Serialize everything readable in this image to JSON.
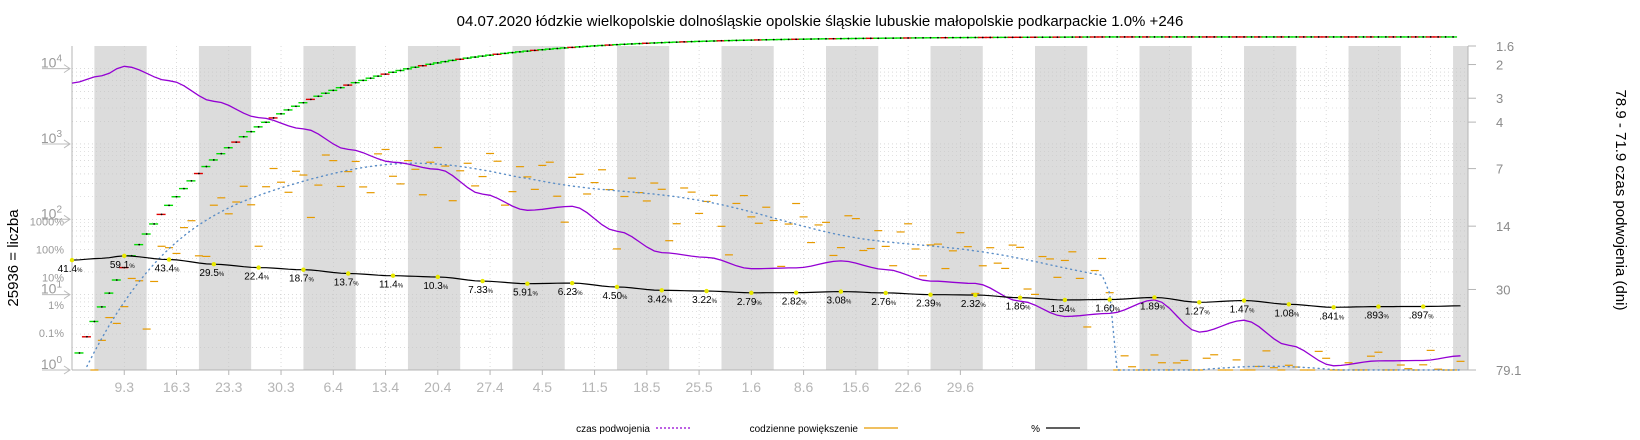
{
  "chart_data": {
    "type": "line",
    "title": "04.07.2020 łódzkie wielkopolskie dolnośląskie opolskie śląskie lubuskie małopolskie podkarpackie 1.0% +246",
    "ylabel_left": "25936 = liczba",
    "ylabel_right": "78.9 - 71.9 czas podwojenia (dni)",
    "x_ticks": [
      "9.3",
      "16.3",
      "23.3",
      "30.3",
      "6.4",
      "13.4",
      "20.4",
      "27.4",
      "4.5",
      "11.5",
      "18.5",
      "25.5",
      "1.6",
      "8.6",
      "15.6",
      "22.6",
      "29.6"
    ],
    "y_left_count_ticks": [
      {
        "base": "10",
        "exp": "0"
      },
      {
        "base": "10",
        "exp": "1"
      },
      {
        "base": "10",
        "exp": "2"
      },
      {
        "base": "10",
        "exp": "3"
      },
      {
        "base": "10",
        "exp": "4"
      }
    ],
    "y_left_pct_ticks": [
      "0.1%",
      "1%",
      "10%",
      "100%",
      "1000%"
    ],
    "y_right_ticks": [
      "1.6",
      "2",
      "3",
      "4",
      "7",
      "14",
      "30",
      "79.1"
    ],
    "legend": {
      "doubling": "czas podwojenia",
      "daily": "codzienne powiększenie",
      "percent": "%"
    },
    "colors": {
      "count_up": "#00dd00",
      "count_down": "#dd0000",
      "doubling": "#9400d3",
      "daily": "#e69a00",
      "percent": "#000000",
      "percent_marker": "#e8e800",
      "weekend_band": "#dcdcdc"
    },
    "pct_labels": [
      {
        "day": 0,
        "text": "41.4"
      },
      {
        "day": 7,
        "text": "59.1"
      },
      {
        "day": 13,
        "text": "43.4"
      },
      {
        "day": 19,
        "text": "29.5"
      },
      {
        "day": 25,
        "text": "22.4"
      },
      {
        "day": 31,
        "text": "18.7"
      },
      {
        "day": 37,
        "text": "13.7"
      },
      {
        "day": 43,
        "text": "11.4"
      },
      {
        "day": 49,
        "text": "10.3"
      },
      {
        "day": 55,
        "text": "7.33"
      },
      {
        "day": 61,
        "text": "5.91"
      },
      {
        "day": 67,
        "text": "6.23"
      },
      {
        "day": 73,
        "text": "4.50"
      },
      {
        "day": 79,
        "text": "3.42"
      },
      {
        "day": 85,
        "text": "3.22"
      },
      {
        "day": 91,
        "text": "2.79"
      },
      {
        "day": 97,
        "text": "2.82"
      },
      {
        "day": 103,
        "text": "3.08"
      },
      {
        "day": 109,
        "text": "2.76"
      },
      {
        "day": 115,
        "text": "2.39"
      },
      {
        "day": 121,
        "text": "2.32"
      },
      {
        "day": 127,
        "text": "1.86"
      },
      {
        "day": 133,
        "text": "1.54"
      },
      {
        "day": 139,
        "text": "1.60"
      },
      {
        "day": 145,
        "text": "1.89"
      },
      {
        "day": 151,
        "text": "1.27"
      },
      {
        "day": 157,
        "text": "1.47"
      },
      {
        "day": 163,
        "text": "1.08"
      },
      {
        "day": 169,
        "text": ".841"
      },
      {
        "day": 175,
        "text": ".893"
      },
      {
        "day": 181,
        "text": ".897"
      }
    ]
  }
}
